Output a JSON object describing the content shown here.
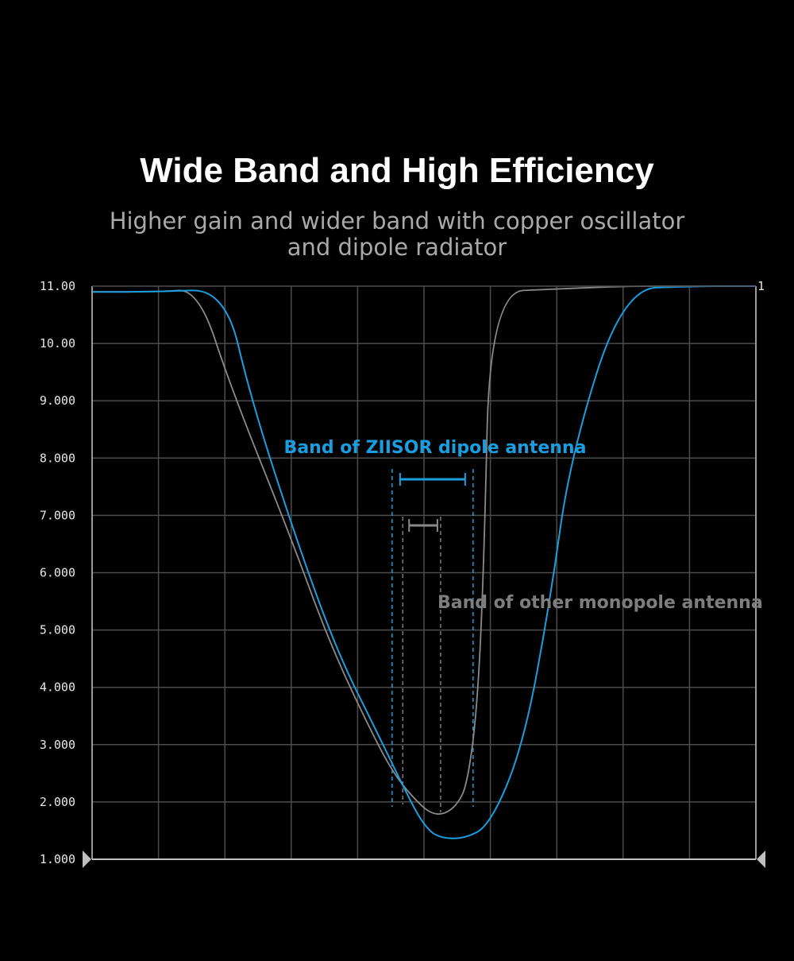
{
  "header": {
    "title": "Wide Band and High Efficiency",
    "subtitle_line1": "Higher gain and wider band with copper oscillator",
    "subtitle_line2": "and dipole radiator"
  },
  "chart_data": {
    "type": "line",
    "title": "Wide Band and High Efficiency",
    "xlabel": "",
    "ylabel": "",
    "ylim": [
      1.0,
      11.0
    ],
    "xlim": [
      0,
      10
    ],
    "grid": true,
    "y_ticks": [
      "11.00",
      "10.00",
      "9.000",
      "8.000",
      "7.000",
      "6.000",
      "5.000",
      "4.000",
      "3.000",
      "2.000",
      "1.000"
    ],
    "marker_label": "1",
    "series": [
      {
        "name": "",
        "color": "#1a9ee0",
        "x": [
          0,
          1,
          2,
          2.4,
          3.1,
          3.7,
          4.3,
          4.8,
          5.0,
          5.2,
          5.6,
          6.0,
          6.5,
          6.9,
          7.2,
          8,
          9,
          10
        ],
        "y": [
          10.9,
          10.9,
          10.95,
          9.0,
          6.5,
          4.6,
          3.2,
          2.0,
          1.6,
          1.38,
          1.35,
          1.6,
          3.0,
          5.5,
          8.0,
          10.95,
          11.0,
          11.0
        ]
      },
      {
        "name": "",
        "color": "#8a8a8a",
        "x": [
          0,
          1,
          1.6,
          2.1,
          3.0,
          3.6,
          4.3,
          4.6,
          4.9,
          5.1,
          5.3,
          5.5,
          5.65,
          5.8,
          5.9,
          6.0,
          7,
          8,
          9,
          10
        ],
        "y": [
          10.9,
          10.9,
          10.95,
          9.2,
          6.6,
          4.7,
          3.0,
          2.4,
          2.0,
          1.8,
          1.78,
          1.95,
          2.3,
          3.6,
          6.0,
          10.9,
          10.95,
          11.0,
          11.0,
          11.0
        ]
      }
    ],
    "annotations": {
      "blue_band_label": "Band of ZIISOR dipole antenna",
      "gray_band_label": "Band of other monopole antenna",
      "blue_band_x": [
        4.52,
        5.74
      ],
      "gray_band_x": [
        4.68,
        5.25
      ]
    }
  },
  "colors": {
    "background": "#000000",
    "grid": "#4d4d4d",
    "axis": "#9a9a9a",
    "blue": "#1a9ee0",
    "gray": "#8a8a8a"
  }
}
